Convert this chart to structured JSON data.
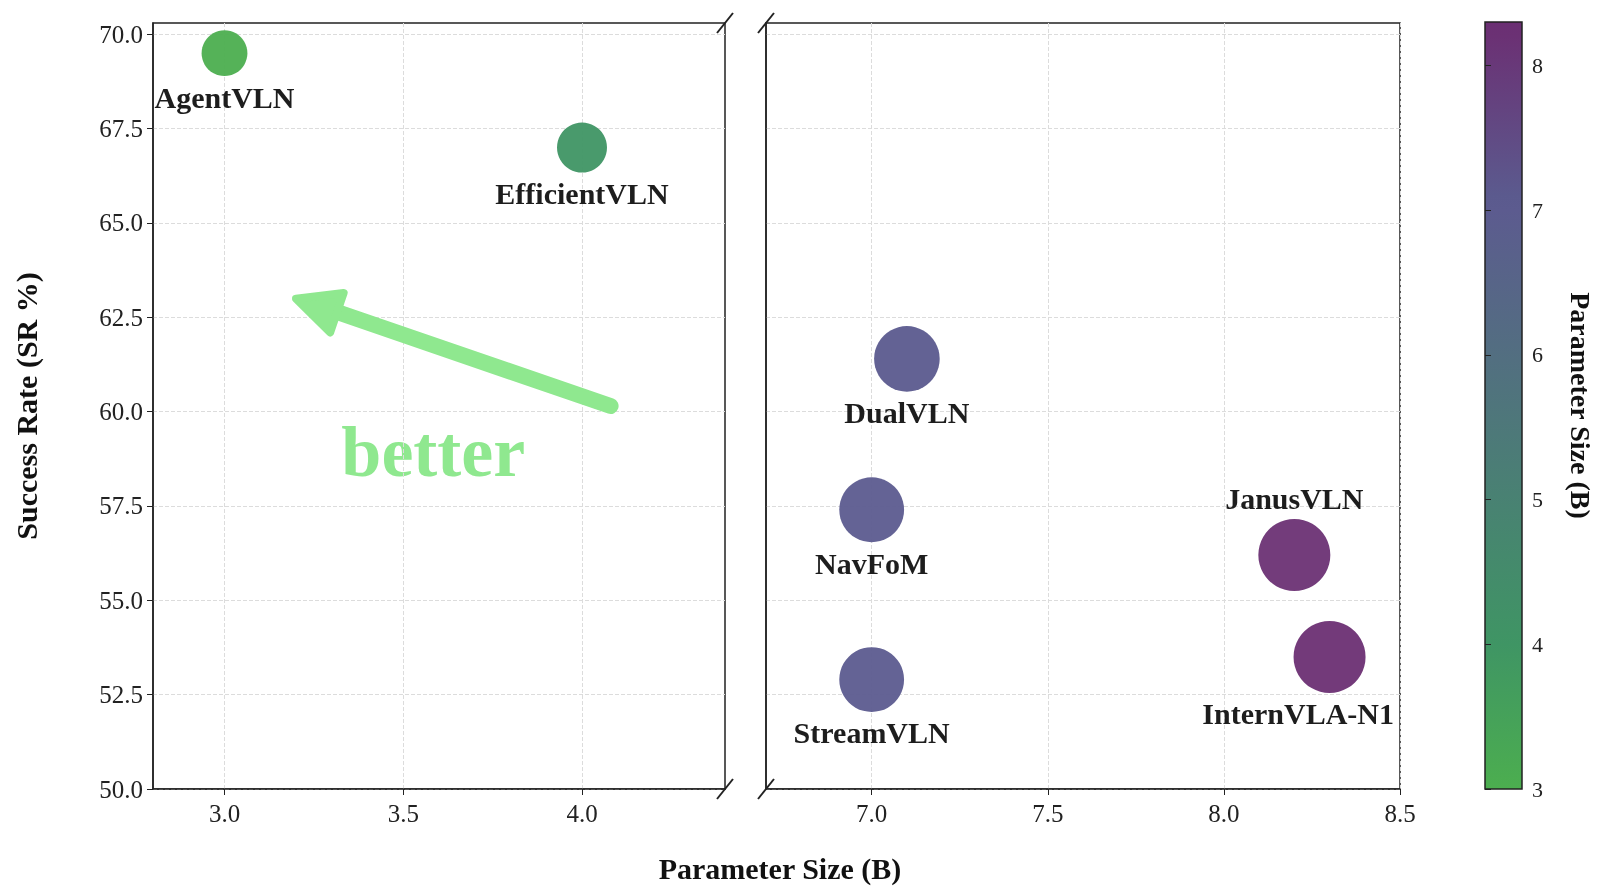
{
  "chart_data": [
    {
      "type": "bubble",
      "xlabel": "Parameter Size (B)",
      "ylabel": "Success Rate (SR %)",
      "xlim": [
        2.8,
        4.4
      ],
      "xticks": [
        {
          "value": 3,
          "label": "3.0"
        },
        3.5,
        {
          "value": 4,
          "label": "4.0"
        }
      ],
      "ylim": [
        50,
        70.3
      ],
      "yticks": [
        {
          "value": 50,
          "label": "50.0"
        },
        52.5,
        {
          "value": 55,
          "label": "55.0"
        },
        57.5,
        {
          "value": 60,
          "label": "60.0"
        },
        62.5,
        {
          "value": 65,
          "label": "65.0"
        },
        67.5,
        {
          "value": 70,
          "label": "70.0"
        }
      ],
      "grid": true,
      "x": [
        3.0,
        4.0
      ],
      "values": [
        69.5,
        67.0
      ],
      "sizes": [
        0.84,
        1
      ],
      "colors": [
        "#4cae4f",
        "#3f9564"
      ],
      "annotations": [
        "better",
        {
          "text": "AgentVLN",
          "x": 3.0,
          "y": 69.5
        },
        {
          "text": "EfficientVLN",
          "x": 4.0,
          "y": 67.0
        }
      ]
    },
    {
      "type": "bubble",
      "tick_labels": "x",
      "clabel": "Parameter Size (B)",
      "clim": [
        3,
        8.3
      ],
      "cticks": [
        3,
        4,
        5,
        6,
        7,
        8
      ],
      "xlim": [
        6.7,
        8.5
      ],
      "xticks": [
        {
          "value": 7,
          "label": "7.0"
        },
        7.5,
        {
          "value": 8,
          "label": "8.0"
        },
        8.5
      ],
      "ylim": [
        50,
        70.3
      ],
      "yticks": [
        50,
        52.5,
        55,
        57.5,
        60,
        62.5,
        65,
        67.5,
        70
      ],
      "grid": true,
      "x": [
        7.1,
        7.0,
        7.0,
        8.2,
        8.3
      ],
      "values": [
        61.4,
        57.4,
        52.9,
        56.2,
        53.5
      ],
      "sizes": [
        0.83,
        0.81,
        0.81,
        1,
        1
      ],
      "cvalues": [
        7.1,
        7.0,
        7.0,
        8.2,
        8.3
      ],
      "colors": [
        "#5b5a8e",
        "#5c5b8f",
        "#5c5b8f",
        "#6b3174",
        "#6b2f73"
      ],
      "annotations": [
        {
          "text": "DualVLN",
          "x": 7.1,
          "y": 61.4
        },
        {
          "text": "NavFoM",
          "x": 7.0,
          "y": 57.4
        },
        {
          "text": "StreamVLN",
          "x": 7.0,
          "y": 52.9
        },
        {
          "text": "JanusVLN",
          "x": 8.2,
          "y": 56.2
        },
        {
          "text": "InternVLA-N1",
          "x": 8.3,
          "y": 53.5
        }
      ]
    }
  ]
}
